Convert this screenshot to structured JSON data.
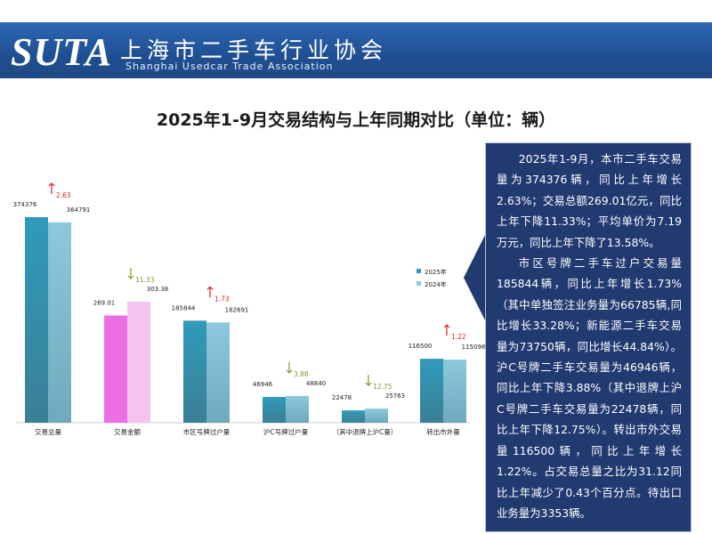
{
  "header": {
    "logo_text": "SUTA",
    "org_name_cn": "上海市二手车行业协会",
    "org_name_en": "Shanghai Usedcar Trade Association"
  },
  "page_title": "2025年1-9月交易结构与上年同期对比（单位：辆）",
  "summary": {
    "paragraph_1": "2025年1-9月，本市二手车交易量为374376辆，同比上年增长2.63%；交易总额269.01亿元，同比上年下降11.33%；平均单价为7.19万元，同比上年下降了13.58%。",
    "paragraph_2": "市区号牌二手车过户交易量185844辆，同比上年增长1.73%（其中单独签注业务量为66785辆,同比增长33.28%；新能源二手车交易量为73750辆，同比增长44.84%）。沪C号牌二手车交易量为46946辆，同比上年下降3.88%（其中退牌上沪C号牌二手车交易量为22478辆，同比上年下降12.75%）。转出市外交易量116500辆，同比上年增长1.22%。占交易总量之比为31.12同比上年减少了0.43个百分点。待出口业务量为3353辆。"
  },
  "colors": {
    "bar_2025": "#2f9bba",
    "bar_2024": "#8cc9dc",
    "bar_amount_2025": "#ec6fe4",
    "bar_amount_2024": "#f6c3ed",
    "arrow_up": "#e02020",
    "arrow_down": "#7f9a2a",
    "panel_bg": "#213a70"
  },
  "chart_data": {
    "type": "bar",
    "categories": [
      "交易总量",
      "交易金额",
      "市区号牌过户量",
      "沪C号牌过户量",
      "（其中退牌上沪C量）",
      "转出市外量"
    ],
    "series": [
      {
        "name": "2025年",
        "values": [
          374376,
          269.01,
          185844,
          46946,
          22478,
          116500
        ],
        "labels": [
          "374376",
          "269.01",
          "185844",
          "46946",
          "22478",
          "116500"
        ]
      },
      {
        "name": "2024年",
        "values": [
          364791,
          303.38,
          182691,
          48840,
          25763,
          115098
        ],
        "labels": [
          "364791",
          "303.38",
          "182691",
          "48840",
          "25763",
          "115098"
        ]
      }
    ],
    "changes": [
      {
        "direction": "up",
        "label": "2.63"
      },
      {
        "direction": "down",
        "label": "11.33"
      },
      {
        "direction": "up",
        "label": "1.73"
      },
      {
        "direction": "down",
        "label": "3.88"
      },
      {
        "direction": "down",
        "label": "12.75"
      },
      {
        "direction": "up",
        "label": "1.22"
      }
    ],
    "legend": {
      "position": "right",
      "entries": [
        "2025年",
        "2024年"
      ]
    },
    "title": "",
    "xlabel": "",
    "ylabel": "",
    "grid": false
  }
}
